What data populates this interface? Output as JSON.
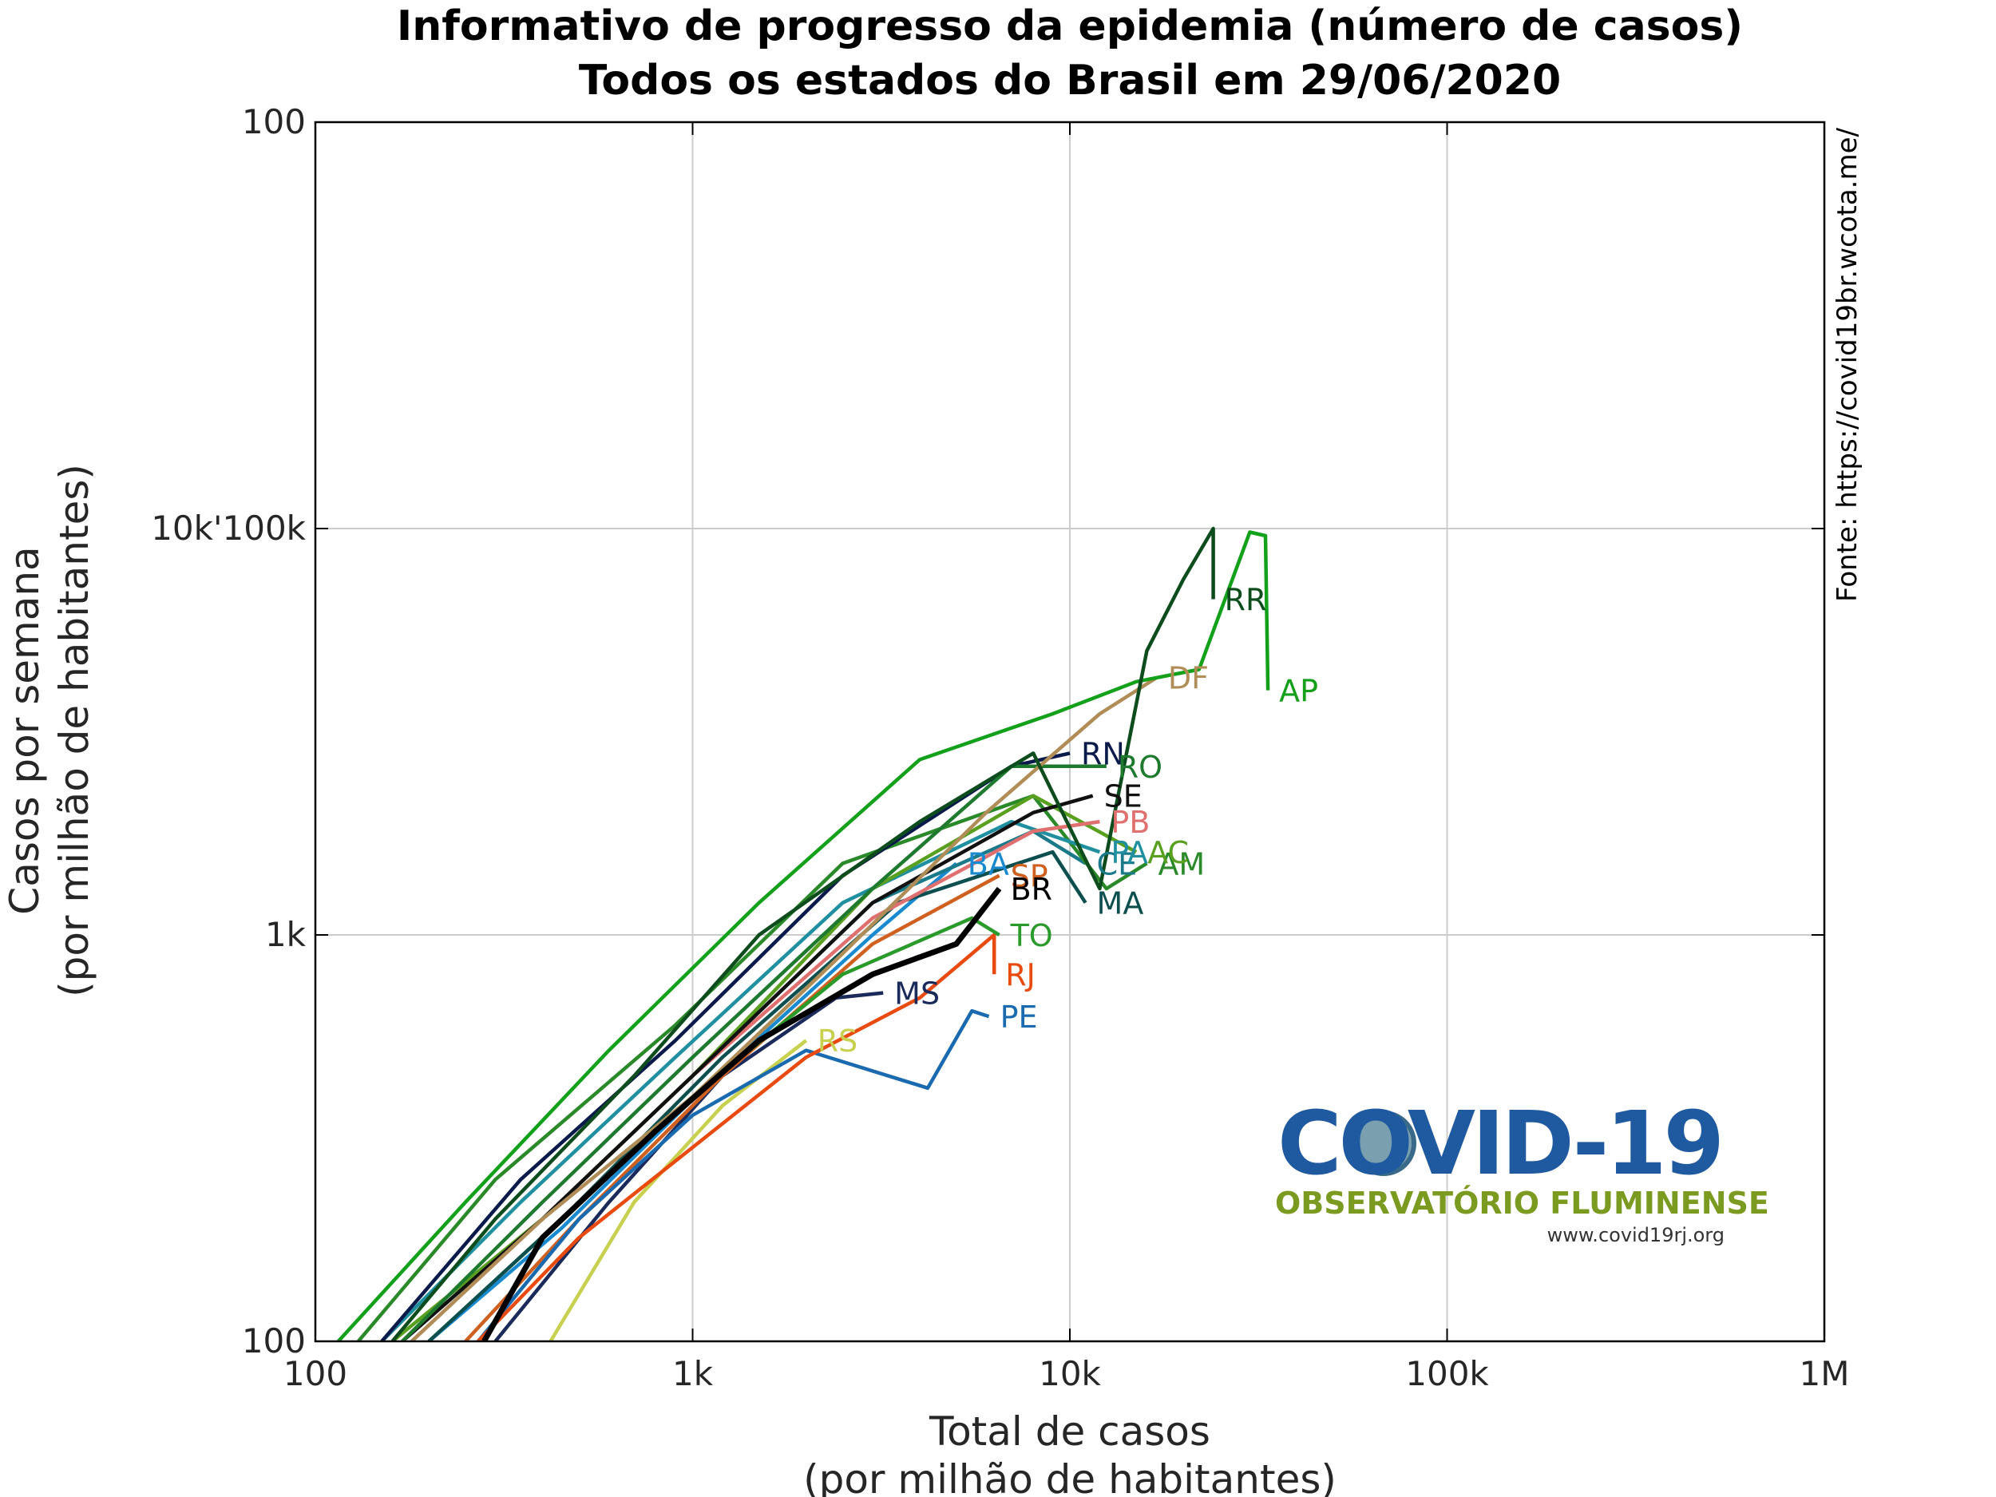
{
  "chart_data": {
    "type": "line",
    "title": [
      "Informativo de progresso da epidemia (número de casos)",
      "Todos os estados do Brasil em 29/06/2020"
    ],
    "xlabel": [
      "Total de casos",
      "(por milhão de habitantes)"
    ],
    "ylabel": [
      "Casos por semana",
      "(por milhão de habitantes)"
    ],
    "source": "Fonte: https://covid19br.wcota.me/",
    "logo": {
      "title": "COVID-19",
      "subtitle": "OBSERVATÓRIO FLUMINENSE",
      "url": "www.covid19rj.org"
    },
    "log_scale": true,
    "grid": true,
    "xlim": [
      100,
      1000000
    ],
    "ylim": [
      100,
      100000
    ],
    "xticks": [
      100,
      {
        "value": 1000,
        "label": "1k"
      },
      {
        "value": 10000,
        "label": "10k"
      },
      {
        "value": 100000,
        "label": "100k"
      },
      {
        "value": 1000000,
        "label": "1M"
      }
    ],
    "yticks": [
      100,
      {
        "value": 1000,
        "label": "1k"
      },
      {
        "value": 10000,
        "label": "10k'100k"
      },
      {
        "value": 100000,
        "label": "100"
      }
    ],
    "series": [
      {
        "name": "RS",
        "color": "#c8d050",
        "x": [
          420,
          700,
          1200,
          2000
        ],
        "values": [
          100,
          220,
          380,
          550
        ]
      },
      {
        "name": "MS",
        "color": "#1a2a5a",
        "x": [
          300,
          600,
          1200,
          2400,
          3200
        ],
        "values": [
          100,
          220,
          450,
          700,
          720
        ]
      },
      {
        "name": "SP",
        "color": "#d06020",
        "x": [
          250,
          500,
          1200,
          3000,
          6500
        ],
        "values": [
          100,
          200,
          450,
          950,
          1400
        ]
      },
      {
        "name": "PE",
        "color": "#1a6ab0",
        "x": [
          270,
          500,
          1000,
          2000,
          4200,
          5500,
          6100
        ],
        "values": [
          100,
          200,
          360,
          520,
          420,
          650,
          630
        ]
      },
      {
        "name": "RJ",
        "color": "#e84a10",
        "x": [
          270,
          500,
          1000,
          2000,
          4000,
          6300,
          6300
        ],
        "values": [
          100,
          180,
          300,
          500,
          700,
          1000,
          800
        ]
      },
      {
        "name": "TO",
        "color": "#2a9a2a",
        "x": [
          200,
          450,
          1000,
          2500,
          5500,
          6500
        ],
        "values": [
          100,
          200,
          400,
          800,
          1100,
          1000
        ]
      },
      {
        "name": "BA",
        "color": "#1a8ad0",
        "x": [
          200,
          450,
          1100,
          3000,
          5000
        ],
        "values": [
          100,
          190,
          430,
          1000,
          1500
        ]
      },
      {
        "name": "MA",
        "color": "#0d4f4f",
        "x": [
          200,
          450,
          1200,
          3500,
          9000,
          11000
        ],
        "values": [
          100,
          200,
          500,
          1200,
          1600,
          1200
        ]
      },
      {
        "name": "CE",
        "color": "#1a7a8a",
        "x": [
          170,
          400,
          1000,
          3000,
          8000,
          11000
        ],
        "values": [
          100,
          200,
          450,
          1200,
          1800,
          1500
        ]
      },
      {
        "name": "AM",
        "color": "#2a8a2a",
        "x": [
          130,
          300,
          900,
          2500,
          8000,
          12500,
          16000
        ],
        "values": [
          100,
          250,
          600,
          1500,
          2200,
          1300,
          1500
        ]
      },
      {
        "name": "PA",
        "color": "#2090a0",
        "x": [
          150,
          350,
          900,
          2500,
          7000,
          12000
        ],
        "values": [
          100,
          220,
          500,
          1200,
          1900,
          1600
        ]
      },
      {
        "name": "AC",
        "color": "#5aa020",
        "x": [
          160,
          400,
          1000,
          3000,
          8000,
          15000
        ],
        "values": [
          100,
          200,
          450,
          1300,
          2200,
          1600
        ]
      },
      {
        "name": "PB",
        "color": "#e07070",
        "x": [
          180,
          400,
          1000,
          3000,
          8000,
          12000
        ],
        "values": [
          100,
          200,
          450,
          1100,
          1800,
          1900
        ]
      },
      {
        "name": "SE",
        "color": "#111111",
        "x": [
          170,
          400,
          1000,
          3000,
          8000,
          11500
        ],
        "values": [
          100,
          200,
          450,
          1200,
          2000,
          2200
        ]
      },
      {
        "name": "RN",
        "color": "#0a1a4a",
        "x": [
          150,
          350,
          900,
          2500,
          7000,
          10000
        ],
        "values": [
          100,
          250,
          550,
          1400,
          2600,
          2800
        ]
      },
      {
        "name": "RO",
        "color": "#1e7a2e",
        "x": [
          170,
          400,
          1000,
          3000,
          7000,
          12500
        ],
        "values": [
          100,
          220,
          500,
          1300,
          2600,
          2600
        ]
      },
      {
        "name": "DF",
        "color": "#b08d57",
        "x": [
          180,
          400,
          1000,
          2500,
          6000,
          12000,
          17000
        ],
        "values": [
          100,
          200,
          400,
          900,
          2000,
          3500,
          4300
        ]
      },
      {
        "name": "AP",
        "color": "#13a01a",
        "x": [
          115,
          250,
          600,
          1500,
          4000,
          9000,
          15000,
          22000,
          30000,
          33000,
          33500
        ],
        "values": [
          100,
          220,
          520,
          1200,
          2700,
          3500,
          4200,
          4500,
          9800,
          9600,
          4000
        ]
      },
      {
        "name": "RR",
        "color": "#0d4d1d",
        "x": [
          160,
          300,
          700,
          1500,
          4000,
          8000,
          12000,
          16000,
          20000,
          24000,
          24000
        ],
        "values": [
          100,
          200,
          450,
          1000,
          1900,
          2800,
          1300,
          5000,
          7500,
          10000,
          6700
        ]
      },
      {
        "name": "BR",
        "color": "#000000",
        "x": [
          280,
          400,
          800,
          1500,
          3000,
          5000,
          6500
        ],
        "values": [
          100,
          180,
          330,
          550,
          800,
          950,
          1300
        ]
      }
    ]
  }
}
